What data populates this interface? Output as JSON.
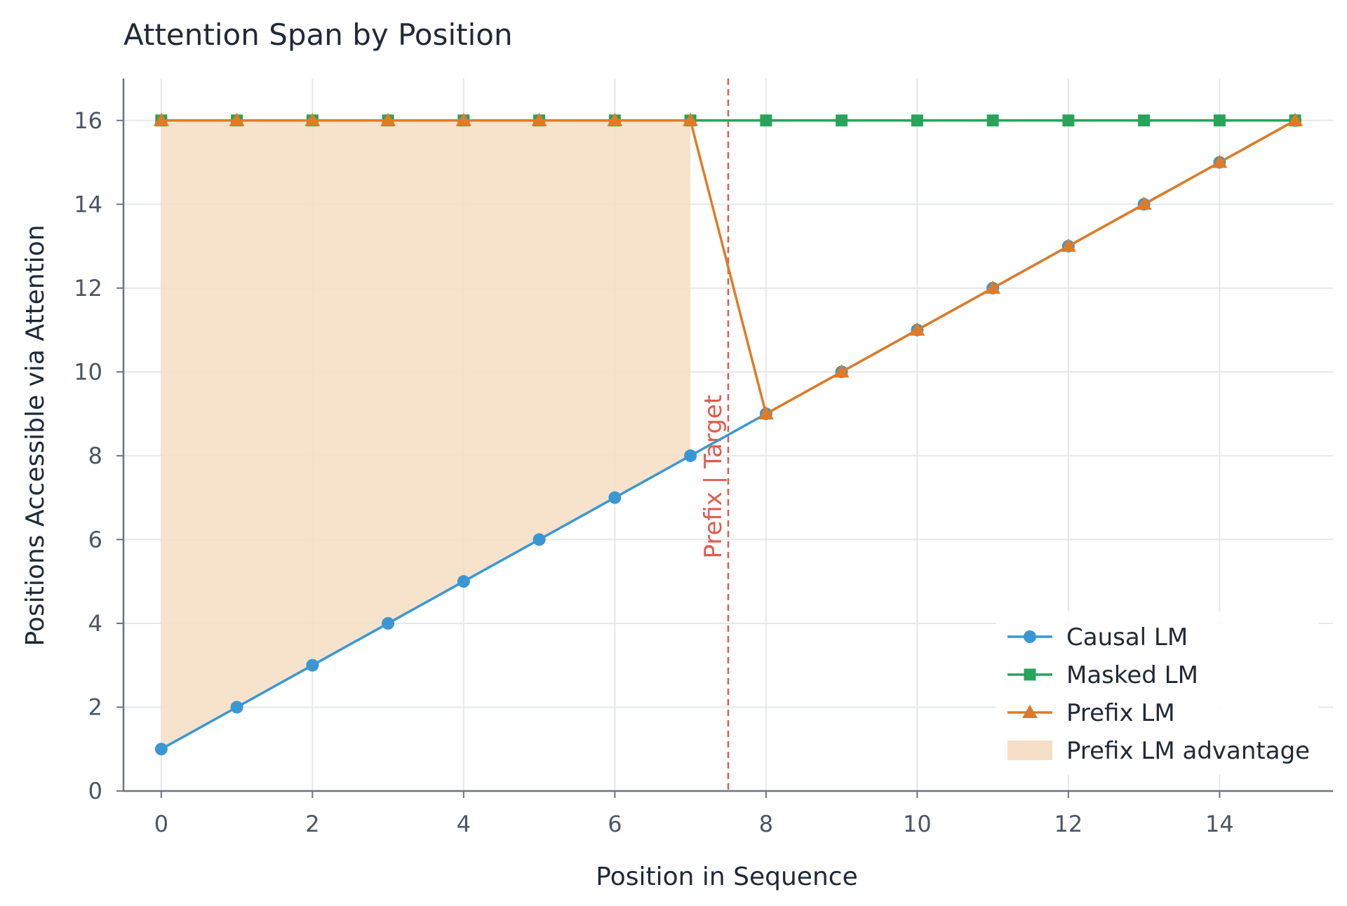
{
  "chart_data": {
    "type": "line",
    "title": "Attention Span by Position",
    "xlabel": "Position in Sequence",
    "ylabel": "Positions Accessible via Attention",
    "xlim": [
      -0.5,
      15.5
    ],
    "ylim": [
      0,
      17
    ],
    "x_ticks": [
      0,
      2,
      4,
      6,
      8,
      10,
      12,
      14
    ],
    "y_ticks": [
      0,
      2,
      4,
      6,
      8,
      10,
      12,
      14,
      16
    ],
    "grid": true,
    "legend_position": "bottom-right",
    "x": [
      0,
      1,
      2,
      3,
      4,
      5,
      6,
      7,
      8,
      9,
      10,
      11,
      12,
      13,
      14,
      15
    ],
    "series": [
      {
        "name": "Causal LM",
        "color": "#3a97d4",
        "marker": "circle",
        "values": [
          1,
          2,
          3,
          4,
          5,
          6,
          7,
          8,
          9,
          10,
          11,
          12,
          13,
          14,
          15,
          16
        ]
      },
      {
        "name": "Masked LM",
        "color": "#27a45a",
        "marker": "square",
        "values": [
          16,
          16,
          16,
          16,
          16,
          16,
          16,
          16,
          16,
          16,
          16,
          16,
          16,
          16,
          16,
          16
        ]
      },
      {
        "name": "Prefix LM",
        "color": "#e07b24",
        "marker": "triangle",
        "values": [
          16,
          16,
          16,
          16,
          16,
          16,
          16,
          16,
          9,
          10,
          11,
          12,
          13,
          14,
          15,
          16
        ]
      }
    ],
    "shaded_region": {
      "name": "Prefix LM advantage",
      "color": "#f6dfc7",
      "x_range": [
        0,
        7
      ],
      "between": [
        "Causal LM",
        "Prefix LM"
      ]
    },
    "vline": {
      "x": 7.5,
      "label": "Prefix | Target",
      "color": "#e05a4f"
    }
  }
}
